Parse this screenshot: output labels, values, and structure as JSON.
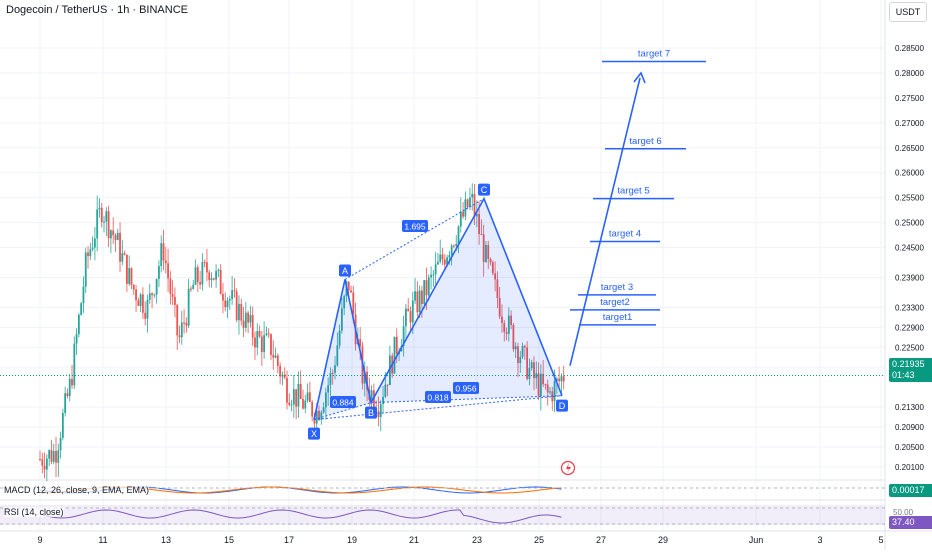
{
  "header": {
    "title": "Dogecoin / TetherUS · 1h · BINANCE",
    "currency": "USDT"
  },
  "price_axis": {
    "ticks": [
      "0.28500",
      "0.28000",
      "0.27500",
      "0.27000",
      "0.26500",
      "0.26000",
      "0.25500",
      "0.25000",
      "0.24500",
      "0.23900",
      "0.23300",
      "0.22900",
      "0.22500",
      "0.22100",
      "0.21300",
      "0.20900",
      "0.20500",
      "0.20100"
    ]
  },
  "time_axis": {
    "ticks": [
      "9",
      "11",
      "13",
      "15",
      "17",
      "19",
      "21",
      "23",
      "25",
      "27",
      "29",
      "Jun",
      "3",
      "5"
    ]
  },
  "last_price": {
    "value": "0.21935",
    "countdown": "01:43",
    "color": "#089981"
  },
  "pattern": {
    "points": [
      {
        "label": "X",
        "price": 0.2105,
        "date": "May 18"
      },
      {
        "label": "A",
        "price": 0.2386,
        "date": "May 18"
      },
      {
        "label": "B",
        "price": 0.2139,
        "date": "May 19"
      },
      {
        "label": "C",
        "price": 0.2548,
        "date": "May 23"
      },
      {
        "label": "D",
        "price": 0.2153,
        "date": "May 25"
      }
    ],
    "ratios": [
      "1.695",
      "0.884",
      "0.818",
      "0.956"
    ],
    "color": "#2962ff"
  },
  "targets": [
    {
      "label": "target1",
      "price": 0.2295
    },
    {
      "label": "target2",
      "price": 0.2325
    },
    {
      "label": "target 3",
      "price": 0.2355
    },
    {
      "label": "target 4",
      "price": 0.2462
    },
    {
      "label": "target 5",
      "price": 0.2548
    },
    {
      "label": "target 6",
      "price": 0.2648
    },
    {
      "label": "target 7",
      "price": 0.2823
    }
  ],
  "macd": {
    "label": "MACD (12, 26, close, 9, EMA, EMA)",
    "value": "0.00017"
  },
  "rsi": {
    "label": "RSI (14, close)",
    "value": "37.40",
    "level": "50.00"
  },
  "chart_data": {
    "type": "line",
    "title": "Dogecoin / TetherUS · 1h · BINANCE",
    "series": [
      {
        "values": [
          0.2026,
          0.204,
          0.218,
          0.242,
          0.253,
          0.246,
          0.237,
          0.233,
          0.245,
          0.226,
          0.238,
          0.241,
          0.236,
          0.232,
          0.227,
          0.225,
          0.217,
          0.214,
          0.212,
          0.22,
          0.2386,
          0.218,
          0.2139,
          0.224,
          0.232,
          0.236,
          0.242,
          0.248,
          0.2548,
          0.242,
          0.232,
          0.225,
          0.219,
          0.2153,
          0.2194
        ]
      }
    ],
    "x_range": [
      "May 9",
      "Jun 5"
    ],
    "ylim": [
      0.2,
      0.287
    ],
    "grid": true
  }
}
